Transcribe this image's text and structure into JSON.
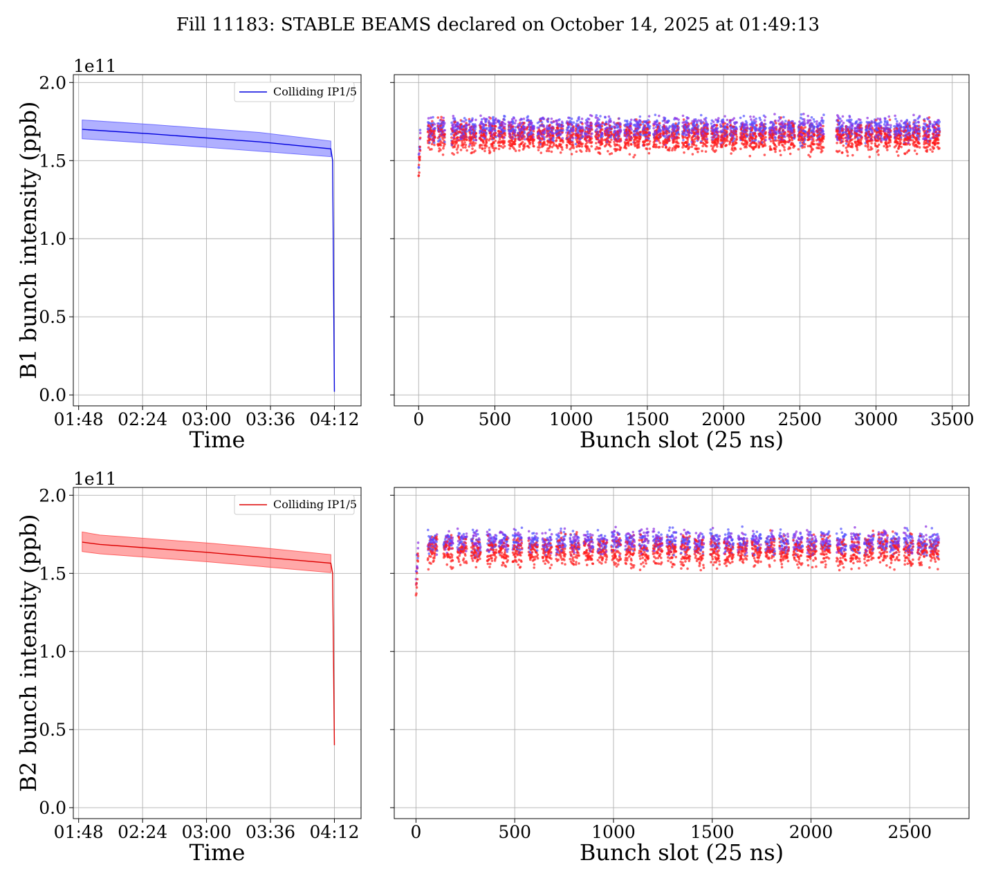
{
  "figure": {
    "title": "Fill 11183: STABLE BEAMS declared on October 14, 2025 at 01:49:13"
  },
  "colors": {
    "beam1": "#0000dd",
    "beam1_band": "#7070ff",
    "beam2": "#dd0000",
    "beam2_band": "#ff6060",
    "scatter_purple": "#8a2be2",
    "scatter_blue": "#5050ff",
    "scatter_red": "#ff1a1a",
    "grid": "#b0b0b0"
  },
  "chart_data": [
    {
      "id": "b1_time",
      "type": "line",
      "xlabel": "Time",
      "ylabel": "B1 bunch intensity (ppb)",
      "y_offset_label": "1e11",
      "x_unit": "time (HH:MM, Oct 14 2025)",
      "x_ticks": [
        "01:48",
        "02:24",
        "03:00",
        "03:36",
        "04:12"
      ],
      "xlim": [
        "01:45",
        "04:27"
      ],
      "ylim": [
        -0.07,
        2.05
      ],
      "y_ticks": [
        "0.0",
        "0.5",
        "1.0",
        "1.5",
        "2.0"
      ],
      "grid": true,
      "legend": {
        "label": "Colliding IP1/5",
        "position": "top-right"
      },
      "series": [
        {
          "name": "Colliding IP1/5",
          "color_key": "beam1",
          "points": [
            [
              "01:50",
              1.7
            ],
            [
              "02:30",
              1.67
            ],
            [
              "03:00",
              1.645
            ],
            [
              "03:30",
              1.62
            ],
            [
              "04:10",
              1.575
            ],
            [
              "04:11",
              1.5
            ],
            [
              "04:12",
              0.02
            ]
          ],
          "band_upper": [
            [
              "01:50",
              1.76
            ],
            [
              "02:30",
              1.73
            ],
            [
              "03:00",
              1.705
            ],
            [
              "03:30",
              1.68
            ],
            [
              "04:10",
              1.625
            ]
          ],
          "band_lower": [
            [
              "01:50",
              1.64
            ],
            [
              "02:30",
              1.61
            ],
            [
              "03:00",
              1.585
            ],
            [
              "03:30",
              1.56
            ],
            [
              "04:10",
              1.525
            ]
          ]
        }
      ]
    },
    {
      "id": "b1_slot",
      "type": "scatter",
      "xlabel": "Bunch slot (25 ns)",
      "ylabel": "",
      "x_ticks": [
        "0",
        "500",
        "1000",
        "1500",
        "2000",
        "2500",
        "3000",
        "3500"
      ],
      "xlim": [
        -160,
        3610
      ],
      "ylim": [
        -0.07,
        2.05
      ],
      "grid": true,
      "trains": [
        0,
        60,
        125,
        215,
        270,
        330,
        400,
        460,
        520,
        590,
        650,
        710,
        780,
        840,
        900,
        970,
        1030,
        1090,
        1160,
        1220,
        1280,
        1350,
        1410,
        1470,
        1540,
        1600,
        1660,
        1730,
        1790,
        1850,
        1920,
        1980,
        2040,
        2110,
        2170,
        2230,
        2300,
        2360,
        2420,
        2490,
        2550,
        2610,
        2740,
        2800,
        2860,
        2930,
        2990,
        3050,
        3120,
        3180,
        3240,
        3310,
        3370
      ],
      "train_length": 48,
      "mean_upper": 1.7,
      "mean_lower": 1.65,
      "spread": 0.07,
      "min": 1.4,
      "max": 1.96
    },
    {
      "id": "b2_time",
      "type": "line",
      "xlabel": "Time",
      "ylabel": "B2 bunch intensity (ppb)",
      "y_offset_label": "1e11",
      "x_unit": "time (HH:MM, Oct 14 2025)",
      "x_ticks": [
        "01:48",
        "02:24",
        "03:00",
        "03:36",
        "04:12"
      ],
      "xlim": [
        "01:45",
        "04:27"
      ],
      "ylim": [
        -0.07,
        2.05
      ],
      "y_ticks": [
        "0.0",
        "0.5",
        "1.0",
        "1.5",
        "2.0"
      ],
      "grid": true,
      "legend": {
        "label": "Colliding IP1/5",
        "position": "top-right"
      },
      "series": [
        {
          "name": "Colliding IP1/5",
          "color_key": "beam2",
          "points": [
            [
              "01:50",
              1.7
            ],
            [
              "02:00",
              1.685
            ],
            [
              "02:30",
              1.66
            ],
            [
              "03:00",
              1.635
            ],
            [
              "03:30",
              1.605
            ],
            [
              "04:10",
              1.565
            ],
            [
              "04:11",
              1.5
            ],
            [
              "04:12",
              0.4
            ]
          ],
          "band_upper": [
            [
              "01:50",
              1.765
            ],
            [
              "02:00",
              1.745
            ],
            [
              "02:30",
              1.72
            ],
            [
              "03:00",
              1.695
            ],
            [
              "03:30",
              1.665
            ],
            [
              "04:10",
              1.62
            ]
          ],
          "band_lower": [
            [
              "01:50",
              1.64
            ],
            [
              "02:00",
              1.625
            ],
            [
              "02:30",
              1.6
            ],
            [
              "03:00",
              1.575
            ],
            [
              "03:30",
              1.545
            ],
            [
              "04:10",
              1.505
            ]
          ]
        }
      ]
    },
    {
      "id": "b2_slot",
      "type": "scatter",
      "xlabel": "Bunch slot (25 ns)",
      "ylabel": "",
      "x_ticks": [
        "0",
        "500",
        "1000",
        "1500",
        "2000",
        "2500"
      ],
      "xlim": [
        -110,
        2800
      ],
      "ylim": [
        -0.07,
        2.05
      ],
      "grid": true,
      "trains": [
        0,
        60,
        140,
        210,
        280,
        360,
        420,
        490,
        570,
        640,
        710,
        780,
        850,
        920,
        990,
        1060,
        1130,
        1200,
        1270,
        1340,
        1410,
        1490,
        1560,
        1630,
        1700,
        1770,
        1840,
        1910,
        1980,
        2050,
        2130,
        2200,
        2270,
        2340,
        2400,
        2470,
        2540,
        2600
      ],
      "train_length": 48,
      "mean_upper": 1.7,
      "mean_lower": 1.64,
      "spread": 0.07,
      "min": 1.36,
      "max": 1.92
    }
  ]
}
